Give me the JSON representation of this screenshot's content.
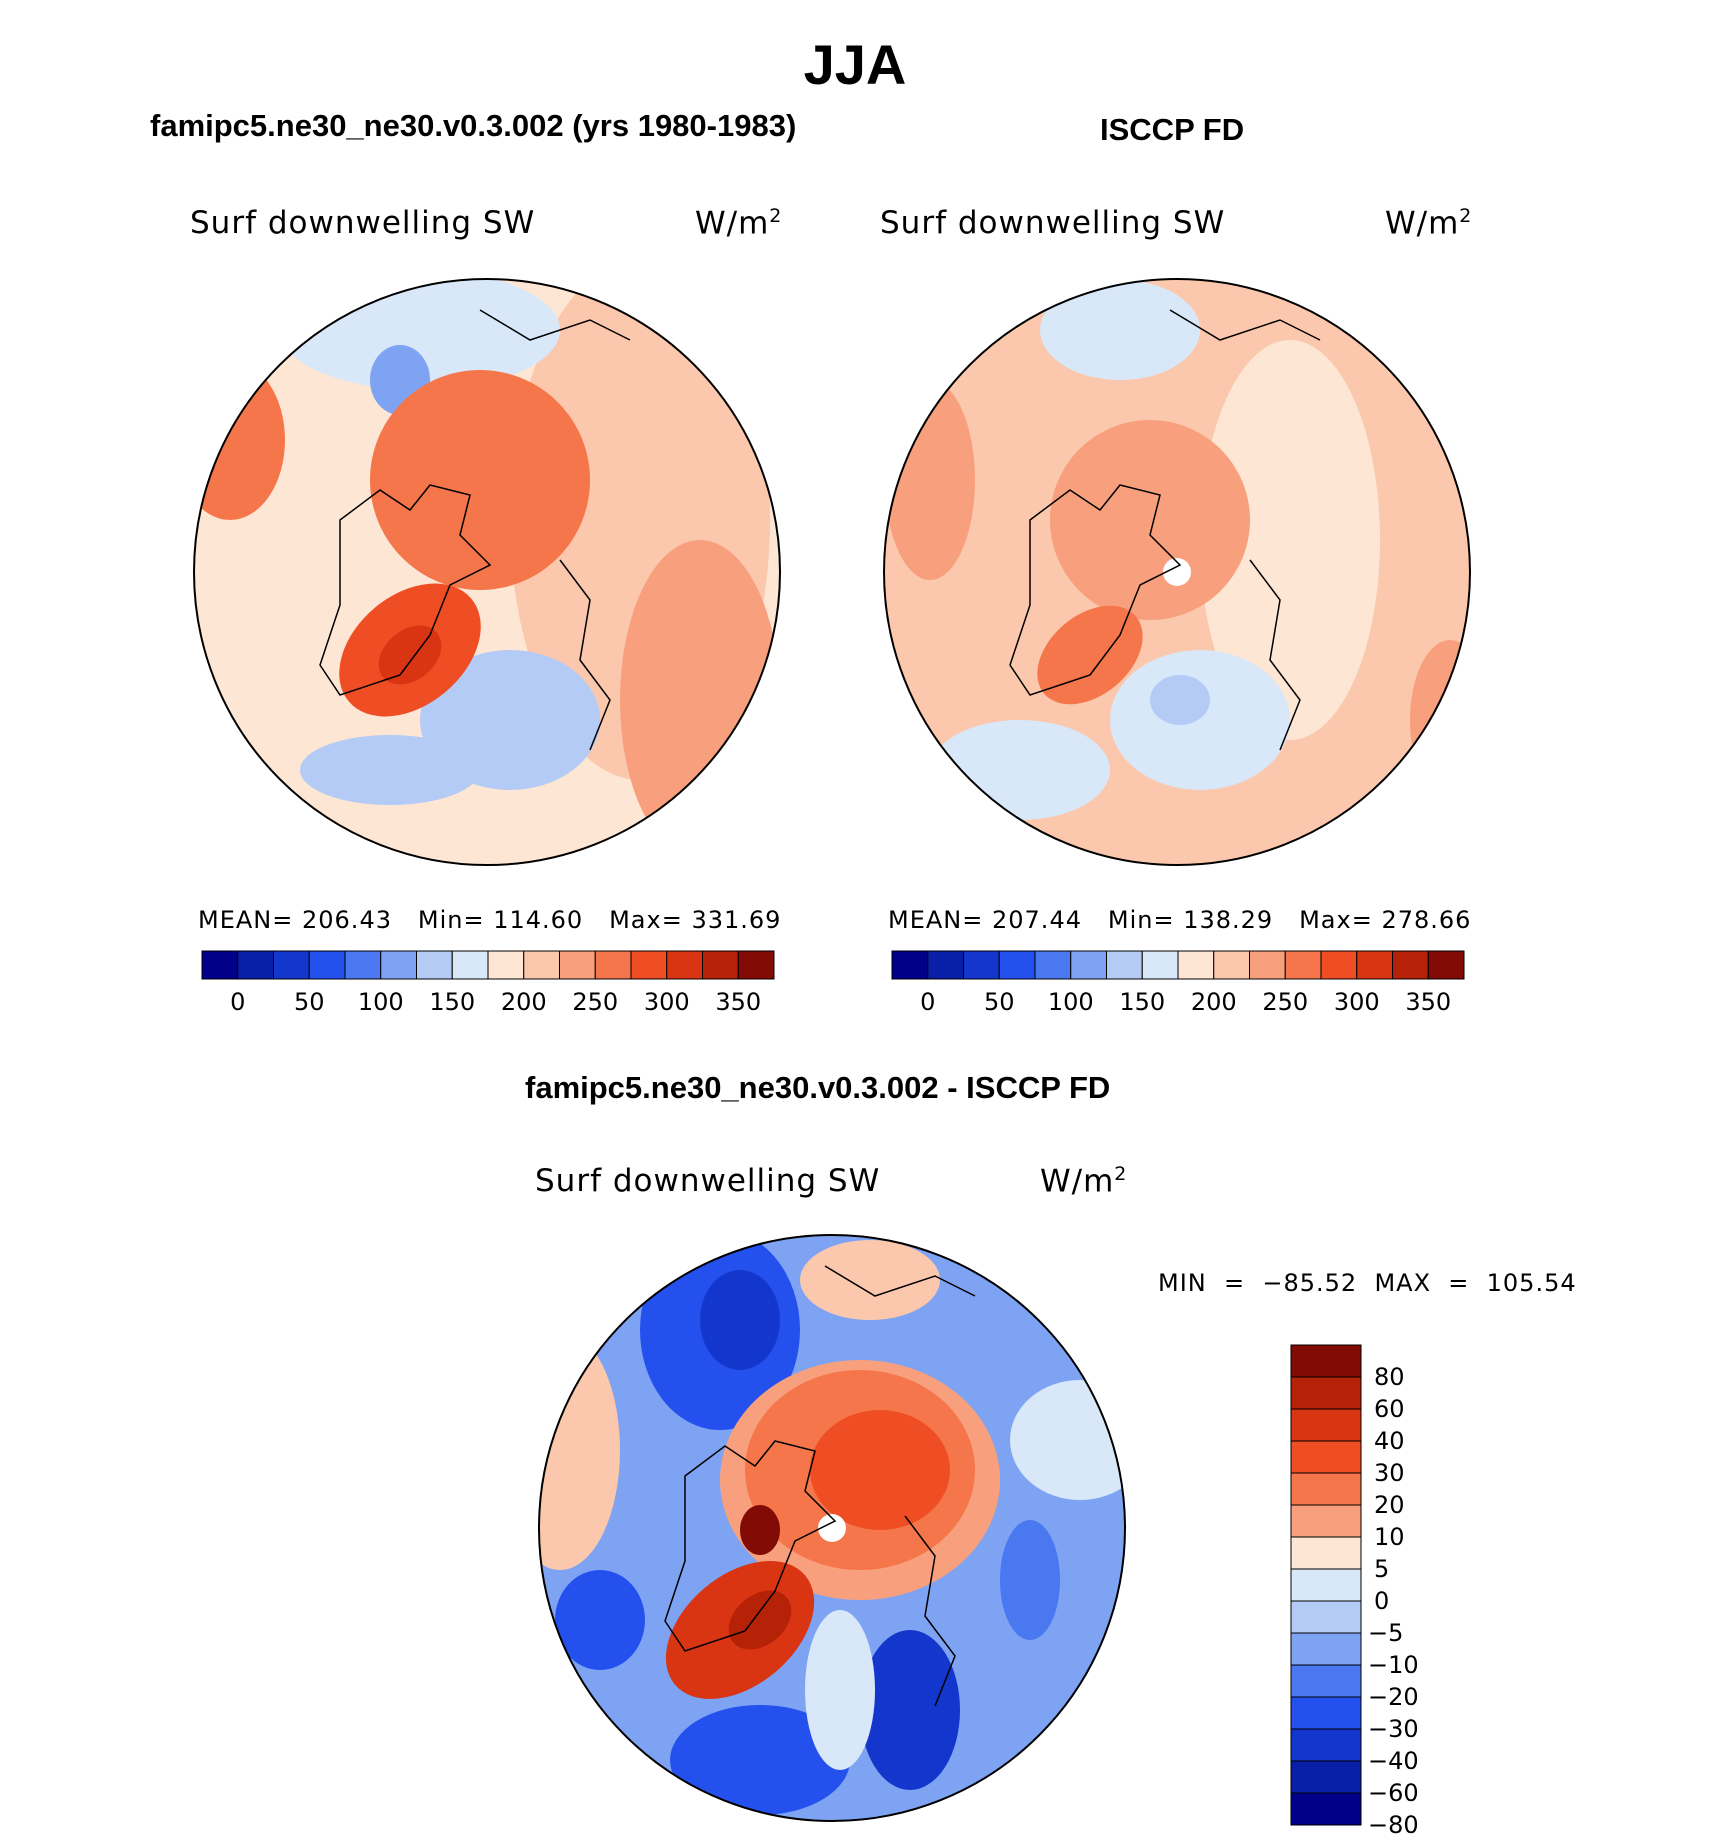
{
  "title": "JJA",
  "panels": [
    {
      "heading": "famipc5.ne30_ne30.v0.3.002 (yrs 1980-1983)",
      "variable": "Surf  downwelling  SW",
      "units": "W/m",
      "units_sup": "2",
      "mean_label": "MEAN=",
      "mean_value": "206.43",
      "min_label": "Min=",
      "min_value": "114.60",
      "max_label": "Max=",
      "max_value": "331.69"
    },
    {
      "heading": "ISCCP FD",
      "variable": "Surf  downwelling  SW",
      "units": "W/m",
      "units_sup": "2",
      "mean_label": "MEAN=",
      "mean_value": "207.44",
      "min_label": "Min=",
      "min_value": "138.29",
      "max_label": "Max=",
      "max_value": "278.66"
    },
    {
      "heading": "famipc5.ne30_ne30.v0.3.002 - ISCCP FD",
      "variable": "Surf  downwelling  SW",
      "units": "W/m",
      "units_sup": "2",
      "minmax_text": "MIN  =  −85.52  MAX  =  105.54"
    }
  ],
  "colorbar_abs": {
    "colors": [
      "#00008b",
      "#0a1fa8",
      "#1336cc",
      "#2451ee",
      "#4a78f0",
      "#7ea3f3",
      "#b3cbf5",
      "#d8e8f9",
      "#fde6d4",
      "#fbc8ad",
      "#f8a07d",
      "#f5764a",
      "#ef4d24",
      "#d93512",
      "#b52208",
      "#830b05"
    ],
    "tick_labels": [
      "0",
      "50",
      "100",
      "150",
      "200",
      "250",
      "300",
      "350"
    ]
  },
  "colorbar_diff": {
    "colors": [
      "#830b05",
      "#b52208",
      "#d93512",
      "#ef4d24",
      "#f5764a",
      "#f8a07d",
      "#fde6d4",
      "#d8e8f9",
      "#b3cbf5",
      "#7ea3f3",
      "#4a78f0",
      "#2451ee",
      "#1336cc",
      "#0a1fa8",
      "#00008b"
    ],
    "tick_labels": [
      "80",
      "60",
      "40",
      "30",
      "20",
      "10",
      "5",
      "0",
      "−5",
      "−10",
      "−20",
      "−30",
      "−40",
      "−60",
      "−80"
    ]
  },
  "chart_data": [
    {
      "type": "heatmap",
      "title": "famipc5.ne30_ne30.v0.3.002 (yrs 1980-1983)",
      "projection": "north-polar stereographic",
      "variable": "Surf downwelling SW",
      "units": "W/m2",
      "mean": 206.43,
      "min": 114.6,
      "max": 331.69,
      "levels": [
        0,
        25,
        50,
        75,
        100,
        125,
        150,
        175,
        200,
        225,
        250,
        275,
        300,
        325,
        350
      ]
    },
    {
      "type": "heatmap",
      "title": "ISCCP FD",
      "projection": "north-polar stereographic",
      "variable": "Surf downwelling SW",
      "units": "W/m2",
      "mean": 207.44,
      "min": 138.29,
      "max": 278.66,
      "levels": [
        0,
        25,
        50,
        75,
        100,
        125,
        150,
        175,
        200,
        225,
        250,
        275,
        300,
        325,
        350
      ]
    },
    {
      "type": "heatmap",
      "title": "famipc5.ne30_ne30.v0.3.002 - ISCCP FD",
      "projection": "north-polar stereographic",
      "variable": "Surf downwelling SW",
      "units": "W/m2",
      "min": -85.52,
      "max": 105.54,
      "levels": [
        -80,
        -60,
        -40,
        -30,
        -20,
        -10,
        -5,
        0,
        5,
        10,
        20,
        30,
        40,
        60,
        80
      ]
    }
  ]
}
